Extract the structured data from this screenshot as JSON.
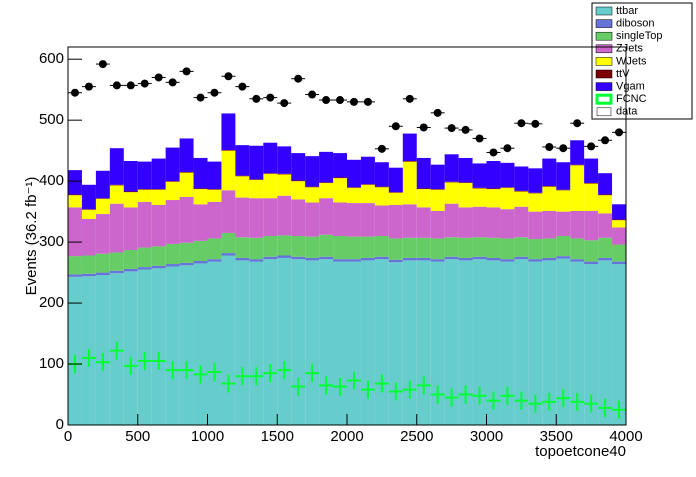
{
  "chart_data": {
    "type": "stacked-histogram",
    "xlabel": "topoetcone40",
    "ylabel": "Events (36.2 fb⁻¹)",
    "bins": [
      0,
      100,
      200,
      300,
      400,
      500,
      600,
      700,
      800,
      900,
      1000,
      1100,
      1200,
      1300,
      1400,
      1500,
      1600,
      1700,
      1800,
      1900,
      2000,
      2100,
      2200,
      2300,
      2400,
      2500,
      2600,
      2700,
      2800,
      2900,
      3000,
      3100,
      3200,
      3300,
      3400,
      3500,
      3600,
      3700,
      3800,
      3900,
      4000
    ],
    "xlim": [
      0,
      4000
    ],
    "xticks": [
      0,
      500,
      1000,
      1500,
      2000,
      2500,
      3000,
      3500,
      4000
    ],
    "ylim": [
      0,
      620
    ],
    "yticks": [
      0,
      100,
      200,
      300,
      400,
      500,
      600
    ],
    "series": [
      {
        "name": "ttbar",
        "color": "#66cccc",
        "values": [
          243,
          244,
          246,
          249,
          252,
          255,
          257,
          260,
          262,
          265,
          268,
          278,
          270,
          268,
          272,
          274,
          272,
          270,
          272,
          268,
          268,
          270,
          272,
          267,
          270,
          270,
          268,
          272,
          270,
          272,
          270,
          268,
          272,
          268,
          270,
          273,
          268,
          264,
          270,
          264
        ]
      },
      {
        "name": "diboson",
        "color": "#6673d9",
        "values": [
          4,
          4,
          4,
          4,
          4,
          4,
          4,
          4,
          4,
          4,
          4,
          4,
          4,
          4,
          4,
          4,
          4,
          4,
          4,
          4,
          4,
          4,
          4,
          4,
          4,
          4,
          4,
          4,
          4,
          4,
          4,
          4,
          4,
          4,
          4,
          4,
          4,
          4,
          4,
          4
        ]
      },
      {
        "name": "singleTop",
        "color": "#66cc66",
        "values": [
          30,
          30,
          31,
          30,
          31,
          32,
          32,
          33,
          33,
          33,
          34,
          33,
          34,
          35,
          34,
          33,
          34,
          35,
          36,
          38,
          37,
          35,
          34,
          35,
          33,
          33,
          34,
          32,
          33,
          32,
          33,
          34,
          32,
          33,
          32,
          33,
          34,
          35,
          33,
          28
        ]
      },
      {
        "name": "ZJets",
        "color": "#cc66cc",
        "values": [
          80,
          60,
          65,
          80,
          70,
          75,
          68,
          72,
          75,
          60,
          60,
          70,
          65,
          65,
          62,
          65,
          60,
          56,
          60,
          55,
          55,
          55,
          50,
          55,
          55,
          50,
          45,
          55,
          50,
          50,
          50,
          48,
          50,
          45,
          45,
          40,
          45,
          48,
          40,
          28
        ]
      },
      {
        "name": "WJets",
        "color": "#ffff00",
        "values": [
          20,
          15,
          25,
          30,
          25,
          20,
          25,
          30,
          40,
          25,
          20,
          65,
          35,
          30,
          40,
          35,
          30,
          25,
          25,
          40,
          25,
          30,
          30,
          20,
          70,
          30,
          35,
          35,
          40,
          30,
          30,
          35,
          25,
          30,
          40,
          35,
          75,
          45,
          30,
          12
        ]
      },
      {
        "name": "ttV",
        "color": "#7f0000",
        "values": [
          1,
          1,
          1,
          1,
          1,
          1,
          1,
          1,
          1,
          1,
          1,
          1,
          1,
          1,
          1,
          1,
          1,
          1,
          1,
          1,
          1,
          1,
          1,
          1,
          1,
          1,
          1,
          1,
          1,
          1,
          1,
          1,
          1,
          1,
          1,
          1,
          1,
          1,
          1,
          1
        ]
      },
      {
        "name": "Vgam",
        "color": "#3300ff",
        "values": [
          40,
          40,
          45,
          60,
          50,
          45,
          50,
          55,
          55,
          50,
          45,
          60,
          50,
          55,
          50,
          45,
          45,
          50,
          50,
          40,
          45,
          45,
          40,
          40,
          45,
          50,
          40,
          45,
          40,
          40,
          45,
          40,
          40,
          40,
          45,
          45,
          40,
          40,
          35,
          25
        ]
      }
    ],
    "signal": {
      "name": "FCNC",
      "color": "#00ff33",
      "values": [
        100,
        110,
        103,
        122,
        97,
        105,
        105,
        90,
        90,
        83,
        87,
        68,
        80,
        80,
        85,
        90,
        63,
        85,
        65,
        63,
        73,
        58,
        68,
        55,
        58,
        65,
        50,
        45,
        50,
        48,
        40,
        48,
        40,
        35,
        38,
        44,
        38,
        35,
        28,
        25
      ]
    },
    "data": {
      "name": "data",
      "color": "#000000",
      "values": [
        545,
        555,
        592,
        557,
        557,
        560,
        570,
        562,
        580,
        537,
        545,
        572,
        555,
        535,
        537,
        528,
        568,
        542,
        533,
        533,
        530,
        530,
        453,
        490,
        535,
        488,
        512,
        487,
        484,
        470,
        447,
        454,
        495,
        494,
        456,
        454,
        495,
        457,
        467,
        480
      ]
    }
  }
}
